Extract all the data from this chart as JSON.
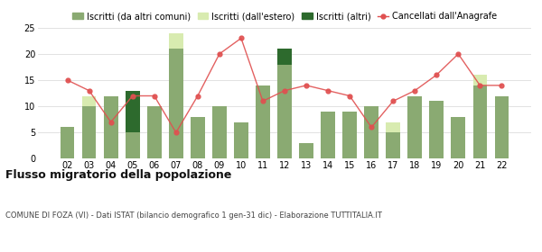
{
  "years": [
    "02",
    "03",
    "04",
    "05",
    "06",
    "07",
    "08",
    "09",
    "10",
    "11",
    "12",
    "13",
    "14",
    "15",
    "16",
    "17",
    "18",
    "19",
    "20",
    "21",
    "22"
  ],
  "iscritti_altri_comuni": [
    6,
    10,
    12,
    5,
    10,
    21,
    8,
    10,
    7,
    14,
    18,
    3,
    9,
    9,
    10,
    5,
    12,
    11,
    8,
    14,
    12
  ],
  "iscritti_estero": [
    0,
    2,
    0,
    0,
    0,
    3,
    0,
    0,
    0,
    0,
    0,
    0,
    0,
    0,
    0,
    2,
    0,
    0,
    0,
    2,
    0
  ],
  "iscritti_altri": [
    0,
    0,
    0,
    8,
    0,
    0,
    0,
    0,
    0,
    0,
    3,
    0,
    0,
    0,
    0,
    0,
    0,
    0,
    0,
    0,
    0
  ],
  "cancellati": [
    15,
    13,
    7,
    12,
    12,
    5,
    12,
    20,
    23,
    11,
    13,
    14,
    13,
    12,
    6,
    11,
    13,
    16,
    20,
    14,
    14
  ],
  "color_altri_comuni": "#8aaa72",
  "color_estero": "#d8ebb0",
  "color_altri": "#2d6a2d",
  "color_cancellati": "#e05050",
  "title": "Flusso migratorio della popolazione",
  "subtitle": "COMUNE DI FOZA (VI) - Dati ISTAT (bilancio demografico 1 gen-31 dic) - Elaborazione TUTTITALIA.IT",
  "legend_labels": [
    "Iscritti (da altri comuni)",
    "Iscritti (dall'estero)",
    "Iscritti (altri)",
    "Cancellati dall'Anagrafe"
  ],
  "ylim": [
    0,
    25
  ],
  "yticks": [
    0,
    5,
    10,
    15,
    20,
    25
  ],
  "bg_color": "#ffffff",
  "grid_color": "#dddddd"
}
